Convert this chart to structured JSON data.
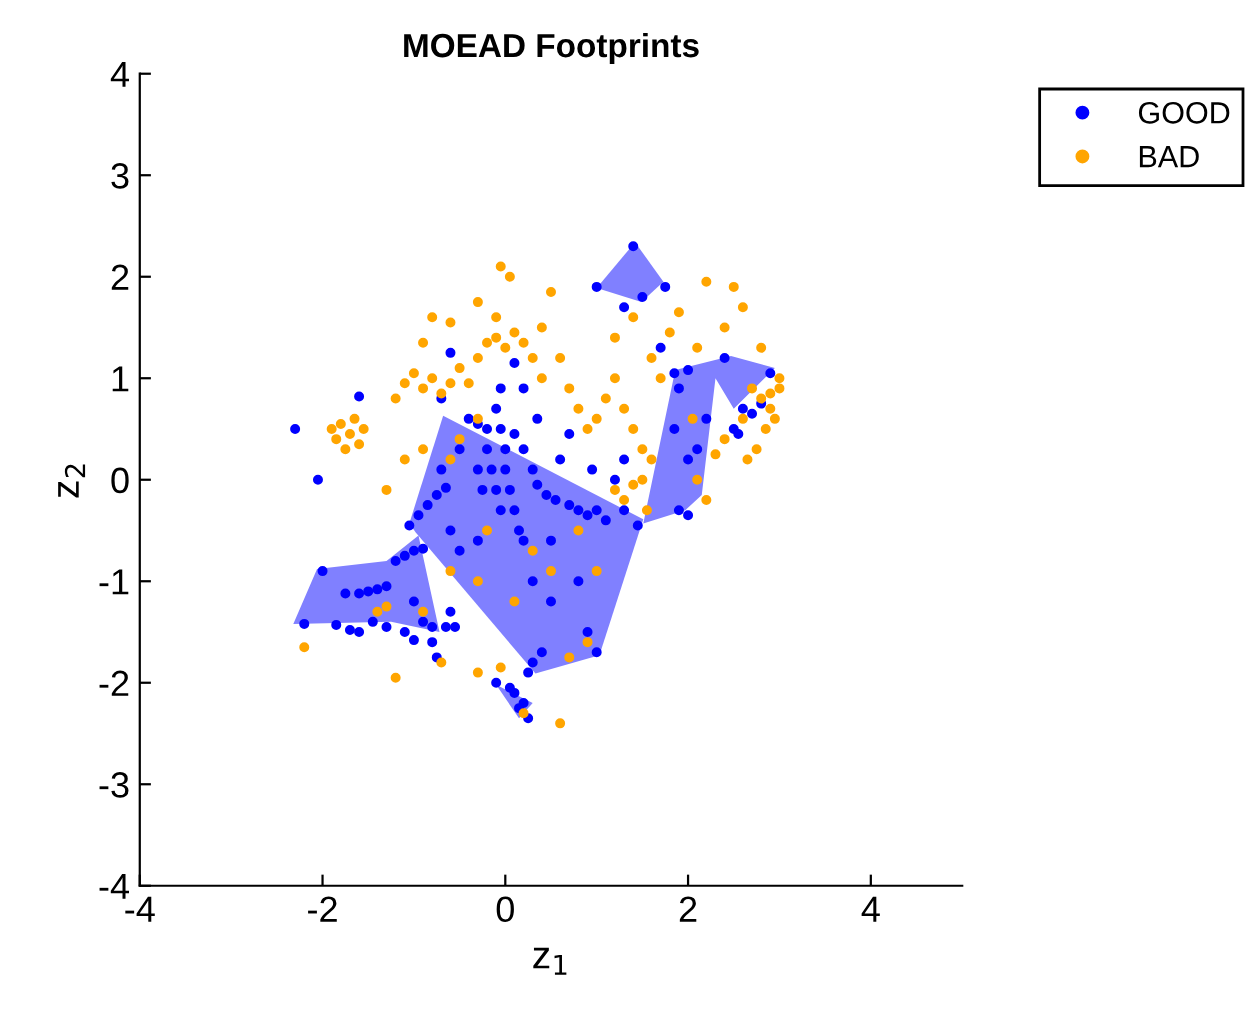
{
  "chart_data": {
    "type": "scatter",
    "title": "MOEAD Footprints",
    "xlabel": "z$_{1}$",
    "ylabel": "z$_{2}$",
    "xlim": [
      -4,
      5
    ],
    "ylim": [
      -4,
      4
    ],
    "xticks": [
      -4,
      -2,
      0,
      2,
      4
    ],
    "yticks": [
      -4,
      -3,
      -2,
      -1,
      0,
      1,
      2,
      3,
      4
    ],
    "grid": false,
    "legend": "top right",
    "series": [
      {
        "type": "area",
        "color": "#8080ff",
        "x": [
          -2.32,
          -2.06,
          -1.3,
          -0.95,
          -0.72,
          -1.25
        ],
        "values": [
          -1.42,
          -0.88,
          -0.8,
          -0.55,
          -1.5,
          -1.4
        ]
      },
      {
        "type": "area",
        "color": "#8080ff",
        "x": [
          -0.68,
          1.51,
          1.03,
          0.33,
          -0.98,
          -1.05
        ],
        "values": [
          0.63,
          -0.39,
          -1.73,
          -1.91,
          -0.52,
          -0.43
        ]
      },
      {
        "type": "area",
        "color": "#8080ff",
        "x": [
          1.42,
          1.0,
          1.49,
          1.73
        ],
        "values": [
          2.34,
          1.89,
          1.75,
          1.95
        ]
      },
      {
        "type": "area",
        "color": "#8080ff",
        "x": [
          1.51,
          1.86,
          2.47,
          2.95,
          2.5,
          2.3,
          2.15,
          1.97
        ],
        "values": [
          -0.43,
          1.08,
          1.22,
          1.1,
          0.7,
          1.0,
          -0.15,
          -0.3
        ]
      },
      {
        "type": "area",
        "color": "#8080ff",
        "x": [
          -0.1,
          0.15,
          0.3
        ],
        "values": [
          -2.02,
          -2.35,
          -2.2
        ]
      },
      {
        "name": "GOOD",
        "color": "#0000ff",
        "marker": "circle",
        "x": [
          -2.3,
          -2.2,
          -2.0,
          -1.85,
          -1.7,
          -1.6,
          -1.75,
          -1.6,
          -1.5,
          -1.4,
          -1.3,
          -1.2,
          -1.1,
          -1.0,
          -0.9,
          -1.05,
          -0.95,
          -0.85,
          -0.75,
          -0.65,
          -1.45,
          -1.3,
          -1.1,
          -1.0,
          -0.9,
          -0.8,
          -0.75,
          -0.65,
          -0.6,
          -0.55,
          -0.8,
          -1.0,
          -1.6,
          -0.6,
          -0.4,
          -0.3,
          -0.2,
          -0.05,
          -0.1,
          -0.05,
          0.0,
          0.0,
          0.05,
          0.1,
          0.15,
          0.2,
          -0.2,
          -0.15,
          -0.1,
          -0.05,
          -0.3,
          -0.25,
          0.1,
          0.2,
          0.3,
          0.35,
          0.45,
          0.55,
          0.7,
          0.8,
          0.9,
          1.0,
          1.1,
          1.3,
          1.45,
          0.6,
          0.5,
          0.3,
          0.8,
          0.9,
          1.0,
          0.4,
          0.25,
          0.3,
          0.1,
          0.2,
          0.25,
          0.15,
          0.05,
          -0.1,
          0.5,
          -0.3,
          -0.5,
          -0.6,
          0.7,
          0.95,
          1.2,
          1.3,
          1.0,
          1.4,
          1.75,
          1.5,
          1.7,
          1.9,
          2.0,
          2.1,
          2.2,
          1.9,
          2.0,
          1.85,
          2.0,
          2.4,
          2.9,
          2.6,
          2.7,
          2.8,
          2.5,
          2.55,
          1.85,
          1.3,
          0.1,
          -0.7,
          -2.05,
          0.2,
          0.35,
          -0.7,
          -0.5
        ],
        "values": [
          0.5,
          -1.42,
          -0.9,
          -1.43,
          -1.48,
          -1.5,
          -1.12,
          -1.12,
          -1.1,
          -1.08,
          -1.05,
          -0.8,
          -0.75,
          -0.7,
          -0.68,
          -0.45,
          -0.35,
          -0.25,
          -0.15,
          -0.08,
          -1.4,
          -1.45,
          -1.5,
          -1.2,
          -1.4,
          -1.6,
          -1.75,
          -1.45,
          -1.3,
          -1.45,
          -1.45,
          -1.58,
          0.82,
          1.25,
          0.6,
          0.55,
          0.5,
          0.9,
          0.7,
          0.5,
          0.3,
          0.1,
          -0.1,
          -0.3,
          -0.5,
          -0.6,
          0.3,
          0.1,
          -0.1,
          -0.3,
          0.1,
          -0.1,
          0.45,
          0.3,
          0.1,
          -0.05,
          -0.15,
          -0.2,
          -0.25,
          -0.3,
          -0.35,
          -0.3,
          -0.4,
          -0.3,
          -0.45,
          0.2,
          -0.6,
          -1.0,
          -1.0,
          -1.5,
          -1.7,
          -1.7,
          -1.9,
          -1.8,
          -2.1,
          -2.2,
          -2.35,
          -2.25,
          -2.05,
          -2.0,
          -1.2,
          -0.6,
          -0.7,
          -0.5,
          0.45,
          0.1,
          0.0,
          1.7,
          1.9,
          2.3,
          1.9,
          1.8,
          1.3,
          0.9,
          0.2,
          0.3,
          0.6,
          -0.3,
          -0.35,
          1.05,
          1.08,
          1.2,
          1.05,
          0.7,
          0.65,
          0.75,
          0.5,
          0.45,
          0.5,
          0.2,
          1.15,
          0.8,
          0.0,
          0.9,
          0.6,
          0.1,
          0.3
        ]
      },
      {
        "name": "BAD",
        "color": "#ffa500",
        "marker": "circle",
        "x": [
          -1.9,
          -1.8,
          -1.7,
          -1.6,
          -1.75,
          -1.65,
          -1.85,
          -1.55,
          -1.2,
          -1.1,
          -1.0,
          -0.9,
          -0.8,
          -0.7,
          -0.6,
          -0.5,
          -0.4,
          -0.3,
          -0.2,
          -0.1,
          0.0,
          0.1,
          0.2,
          0.3,
          0.4,
          -0.9,
          -0.8,
          -0.6,
          -0.3,
          -0.05,
          0.05,
          -0.1,
          0.4,
          0.5,
          -1.3,
          -1.1,
          -0.9,
          -0.6,
          -0.5,
          -0.3,
          0.6,
          0.7,
          0.8,
          0.9,
          1.0,
          1.1,
          1.2,
          1.3,
          1.4,
          1.5,
          1.6,
          1.2,
          1.4,
          1.6,
          1.7,
          1.8,
          1.9,
          2.1,
          2.4,
          2.5,
          2.2,
          2.6,
          2.8,
          1.2,
          1.3,
          1.4,
          1.5,
          1.55,
          2.7,
          2.8,
          2.9,
          3.0,
          2.95,
          2.85,
          2.75,
          2.6,
          3.0,
          2.9,
          2.65,
          2.1,
          2.3,
          2.4,
          -2.2,
          -1.4,
          -1.2,
          -1.3,
          -0.3,
          -0.7,
          -0.9,
          0.6,
          0.7,
          0.9,
          -0.05,
          0.2,
          -0.2,
          0.3,
          0.5,
          0.8,
          1.0,
          -0.3,
          0.1,
          -0.6,
          2.05,
          2.2
        ],
        "values": [
          0.5,
          0.55,
          0.45,
          0.35,
          0.3,
          0.6,
          0.4,
          0.5,
          0.8,
          0.95,
          1.05,
          0.9,
          1.0,
          0.85,
          0.95,
          1.1,
          0.95,
          1.2,
          1.35,
          1.4,
          1.3,
          1.45,
          1.35,
          1.2,
          1.0,
          1.35,
          1.6,
          1.55,
          1.75,
          2.1,
          2.0,
          1.6,
          1.5,
          1.85,
          -0.1,
          0.2,
          0.3,
          0.2,
          0.4,
          0.6,
          1.2,
          0.9,
          0.7,
          0.5,
          0.6,
          0.8,
          1.0,
          0.7,
          0.5,
          0.3,
          0.2,
          1.4,
          1.6,
          1.2,
          1.0,
          1.45,
          1.65,
          1.3,
          1.5,
          1.9,
          1.95,
          1.7,
          1.3,
          -0.1,
          -0.2,
          -0.05,
          0.0,
          -0.3,
          0.9,
          0.8,
          0.7,
          0.9,
          0.6,
          0.5,
          0.3,
          0.6,
          1.0,
          0.85,
          0.2,
          0.0,
          0.25,
          0.4,
          -1.65,
          -1.3,
          -1.95,
          -1.25,
          -1.9,
          -1.8,
          -1.3,
          -2.4,
          -1.75,
          -1.6,
          -1.85,
          -2.3,
          -0.5,
          -0.7,
          -0.9,
          -0.5,
          -0.9,
          -1.0,
          -1.2,
          -0.9,
          0.6,
          -0.2
        ]
      }
    ]
  }
}
